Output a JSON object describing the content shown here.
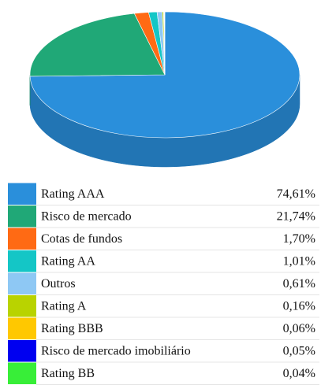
{
  "chart_data": {
    "type": "pie3d",
    "categories": [
      "Rating AAA",
      "Risco de mercado",
      "Cotas de fundos",
      "Rating AA",
      "Outros",
      "Rating A",
      "Rating BBB",
      "Risco de mercado imobiliário",
      "Rating BB"
    ],
    "values": [
      74.61,
      21.74,
      1.7,
      1.01,
      0.61,
      0.16,
      0.06,
      0.05,
      0.04
    ],
    "value_labels": [
      "74,61%",
      "21,74%",
      "1,70%",
      "1,01%",
      "0,61%",
      "0,16%",
      "0,06%",
      "0,05%",
      "0,04%"
    ],
    "colors": [
      "#2a8fdb",
      "#20a877",
      "#ff6a14",
      "#14c6c6",
      "#8ec8f4",
      "#b9d300",
      "#ffc800",
      "#0000f0",
      "#38ee38"
    ]
  }
}
